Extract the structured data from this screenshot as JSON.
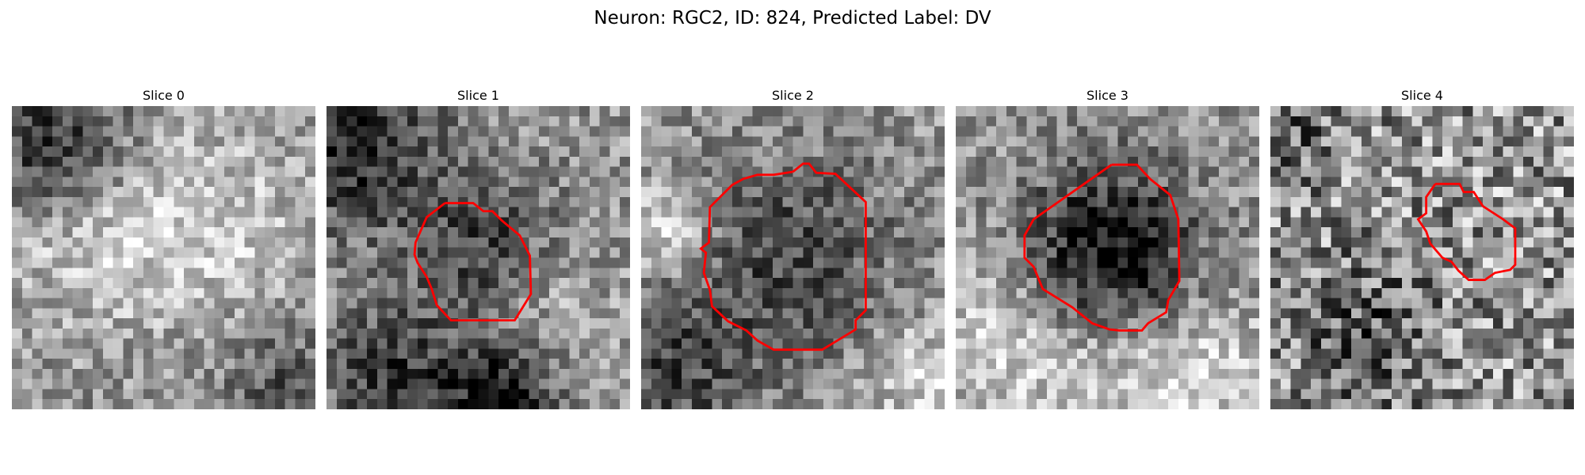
{
  "figure": {
    "title": "Neuron: RGC2, ID: 824, Predicted Label: DV",
    "outline_color": "#ff0000"
  },
  "panels": [
    {
      "title": "Slice 0",
      "has_outline": false
    },
    {
      "title": "Slice 1",
      "has_outline": true
    },
    {
      "title": "Slice 2",
      "has_outline": true
    },
    {
      "title": "Slice 3",
      "has_outline": true
    },
    {
      "title": "Slice 4",
      "has_outline": true
    }
  ]
}
